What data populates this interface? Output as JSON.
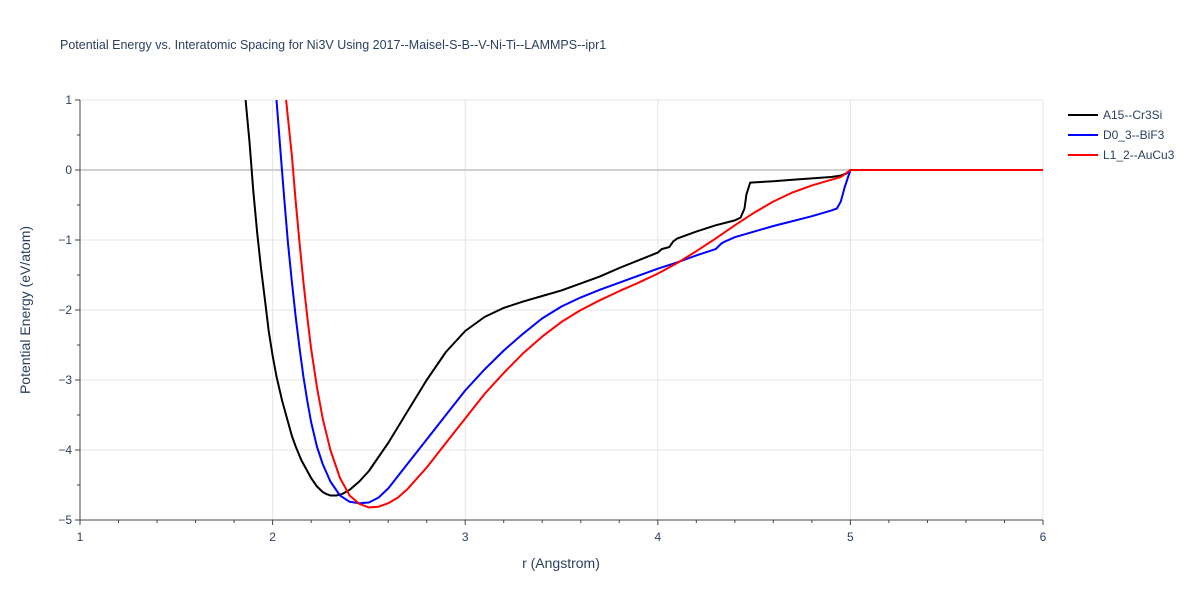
{
  "chart_data": {
    "type": "line",
    "title": "Potential Energy vs. Interatomic Spacing for Ni3V Using 2017--Maisel-S-B--V-Ni-Ti--LAMMPS--ipr1",
    "xlabel": "r (Angstrom)",
    "ylabel": "Potential Energy (eV/atom)",
    "xlim": [
      1,
      6
    ],
    "ylim": [
      -5,
      1
    ],
    "xticks": [
      "1",
      "2",
      "3",
      "4",
      "5",
      "6"
    ],
    "yticks": [
      "1",
      "0",
      "−1",
      "−2",
      "−3",
      "−4",
      "−5"
    ],
    "grid": true,
    "legend_position": "top-right",
    "series": [
      {
        "name": "A15--Cr3Si",
        "color": "#000000",
        "x": [
          1.86,
          1.88,
          1.9,
          1.92,
          1.94,
          1.96,
          1.98,
          2.0,
          2.02,
          2.05,
          2.08,
          2.1,
          2.12,
          2.15,
          2.18,
          2.2,
          2.23,
          2.26,
          2.28,
          2.3,
          2.33,
          2.36,
          2.4,
          2.45,
          2.5,
          2.55,
          2.6,
          2.7,
          2.8,
          2.9,
          3.0,
          3.1,
          3.2,
          3.3,
          3.4,
          3.5,
          3.55,
          3.6,
          3.7,
          3.8,
          3.9,
          4.0,
          4.02,
          4.06,
          4.08,
          4.1,
          4.2,
          4.3,
          4.4,
          4.43,
          4.45,
          4.46,
          4.48,
          4.6,
          4.7,
          4.8,
          4.9,
          4.95,
          4.98,
          5.0,
          5.2,
          5.4,
          5.6,
          5.8,
          6.0
        ],
        "y": [
          1.0,
          0.4,
          -0.3,
          -0.9,
          -1.4,
          -1.85,
          -2.3,
          -2.65,
          -2.95,
          -3.3,
          -3.6,
          -3.8,
          -3.95,
          -4.15,
          -4.3,
          -4.4,
          -4.52,
          -4.6,
          -4.63,
          -4.65,
          -4.65,
          -4.63,
          -4.57,
          -4.45,
          -4.3,
          -4.1,
          -3.9,
          -3.45,
          -3.0,
          -2.6,
          -2.3,
          -2.1,
          -1.97,
          -1.88,
          -1.8,
          -1.72,
          -1.67,
          -1.62,
          -1.52,
          -1.4,
          -1.29,
          -1.18,
          -1.13,
          -1.1,
          -1.02,
          -0.98,
          -0.88,
          -0.79,
          -0.72,
          -0.68,
          -0.55,
          -0.35,
          -0.18,
          -0.16,
          -0.14,
          -0.12,
          -0.1,
          -0.08,
          -0.05,
          0.0,
          0.0,
          0.0,
          0.0,
          0.0,
          0.0
        ]
      },
      {
        "name": "D0_3--BiF3",
        "color": "#0000ff",
        "x": [
          2.02,
          2.04,
          2.06,
          2.08,
          2.1,
          2.12,
          2.14,
          2.16,
          2.18,
          2.2,
          2.23,
          2.26,
          2.3,
          2.35,
          2.4,
          2.45,
          2.5,
          2.55,
          2.6,
          2.7,
          2.8,
          2.9,
          3.0,
          3.1,
          3.2,
          3.3,
          3.4,
          3.5,
          3.6,
          3.7,
          3.8,
          3.9,
          4.0,
          4.1,
          4.2,
          4.3,
          4.33,
          4.35,
          4.4,
          4.5,
          4.6,
          4.7,
          4.8,
          4.9,
          4.93,
          4.95,
          4.97,
          5.0,
          5.2,
          5.4,
          5.6,
          5.8,
          6.0
        ],
        "y": [
          1.0,
          0.3,
          -0.4,
          -1.05,
          -1.6,
          -2.1,
          -2.55,
          -2.95,
          -3.3,
          -3.6,
          -3.95,
          -4.2,
          -4.45,
          -4.65,
          -4.74,
          -4.76,
          -4.75,
          -4.68,
          -4.55,
          -4.2,
          -3.85,
          -3.5,
          -3.15,
          -2.85,
          -2.58,
          -2.34,
          -2.12,
          -1.95,
          -1.82,
          -1.71,
          -1.61,
          -1.51,
          -1.41,
          -1.32,
          -1.22,
          -1.13,
          -1.05,
          -1.02,
          -0.96,
          -0.88,
          -0.8,
          -0.73,
          -0.66,
          -0.58,
          -0.55,
          -0.45,
          -0.25,
          0.0,
          0.0,
          0.0,
          0.0,
          0.0,
          0.0
        ]
      },
      {
        "name": "L1_2--AuCu3",
        "color": "#ff0000",
        "x": [
          2.07,
          2.1,
          2.12,
          2.14,
          2.16,
          2.18,
          2.2,
          2.23,
          2.26,
          2.3,
          2.35,
          2.4,
          2.45,
          2.5,
          2.55,
          2.6,
          2.65,
          2.7,
          2.8,
          2.9,
          3.0,
          3.1,
          3.2,
          3.3,
          3.4,
          3.5,
          3.6,
          3.7,
          3.8,
          3.9,
          4.0,
          4.1,
          4.2,
          4.3,
          4.4,
          4.5,
          4.6,
          4.7,
          4.8,
          4.9,
          4.95,
          5.0,
          5.2,
          5.4,
          5.6,
          5.8,
          6.0
        ],
        "y": [
          1.0,
          0.2,
          -0.45,
          -1.05,
          -1.6,
          -2.1,
          -2.55,
          -3.1,
          -3.55,
          -4.0,
          -4.4,
          -4.65,
          -4.77,
          -4.82,
          -4.81,
          -4.76,
          -4.68,
          -4.56,
          -4.25,
          -3.9,
          -3.55,
          -3.2,
          -2.9,
          -2.62,
          -2.38,
          -2.17,
          -2.0,
          -1.86,
          -1.73,
          -1.61,
          -1.48,
          -1.33,
          -1.16,
          -0.98,
          -0.79,
          -0.61,
          -0.45,
          -0.32,
          -0.22,
          -0.14,
          -0.1,
          0.0,
          0.0,
          0.0,
          0.0,
          0.0,
          0.0
        ]
      }
    ]
  }
}
